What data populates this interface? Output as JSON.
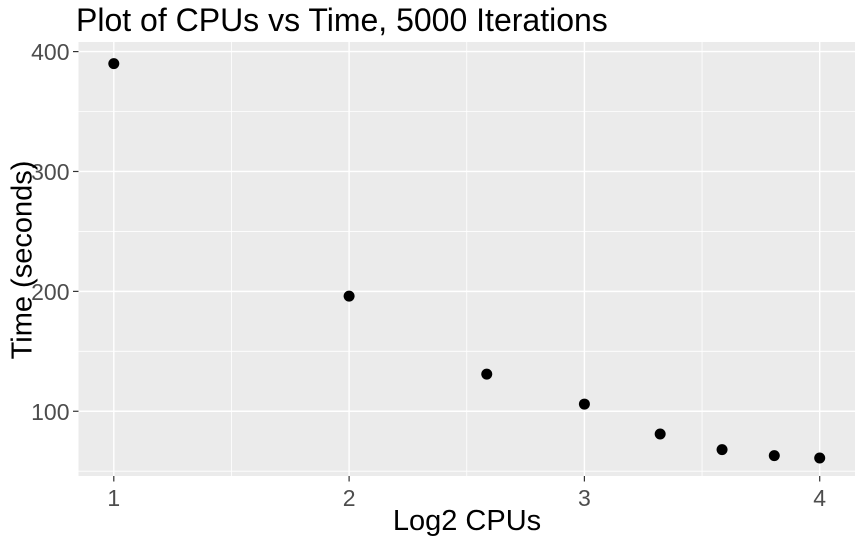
{
  "header": {
    "title": "Plot of CPUs vs Time, 5000 Iterations"
  },
  "chart_data": {
    "type": "scatter",
    "title": "Plot of CPUs vs Time, 5000 Iterations",
    "xlabel": "Log2 CPUs",
    "ylabel": "Time (seconds)",
    "x": [
      1,
      2,
      2.585,
      3,
      3.322,
      3.585,
      3.807,
      4
    ],
    "y": [
      390,
      196,
      131,
      106,
      81,
      68,
      63,
      61
    ],
    "xlim": [
      0.85,
      4.15
    ],
    "ylim": [
      46,
      408
    ],
    "x_ticks": {
      "major": [
        1,
        2,
        3,
        4
      ],
      "minor": [
        1.5,
        2.5,
        3.5
      ]
    },
    "y_ticks": {
      "major": [
        100,
        200,
        300,
        400
      ],
      "minor": [
        50,
        150,
        250,
        350
      ]
    },
    "grid": "major+minor",
    "legend": "none",
    "theme": "ggplot2-grey",
    "colors": {
      "point": "#000000",
      "panel_bg": "#EBEBEB",
      "grid": "#FFFFFF",
      "tick_label": "#4D4D4D",
      "tick_mark": "#333333",
      "axis_title": "#000000",
      "title": "#000000",
      "background": "#FFFFFF"
    }
  }
}
